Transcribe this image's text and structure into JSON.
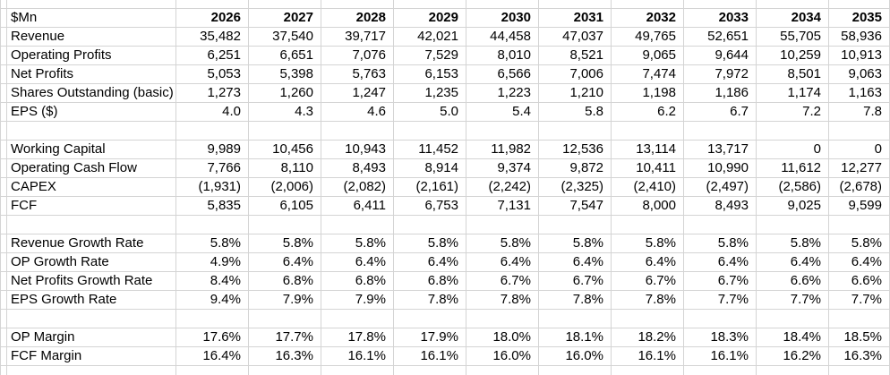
{
  "sheet": {
    "unit_label": "$Mn",
    "years": [
      "2026",
      "2027",
      "2028",
      "2029",
      "2030",
      "2031",
      "2032",
      "2033",
      "2034",
      "2035"
    ],
    "rows": [
      {
        "label": "Revenue",
        "values": [
          "35,482",
          "37,540",
          "39,717",
          "42,021",
          "44,458",
          "47,037",
          "49,765",
          "52,651",
          "55,705",
          "58,936"
        ]
      },
      {
        "label": "Operating Profits",
        "values": [
          "6,251",
          "6,651",
          "7,076",
          "7,529",
          "8,010",
          "8,521",
          "9,065",
          "9,644",
          "10,259",
          "10,913"
        ]
      },
      {
        "label": "Net Profits",
        "values": [
          "5,053",
          "5,398",
          "5,763",
          "6,153",
          "6,566",
          "7,006",
          "7,474",
          "7,972",
          "8,501",
          "9,063"
        ]
      },
      {
        "label": "Shares Outstanding (basic)",
        "values": [
          "1,273",
          "1,260",
          "1,247",
          "1,235",
          "1,223",
          "1,210",
          "1,198",
          "1,186",
          "1,174",
          "1,163"
        ]
      },
      {
        "label": "EPS ($)",
        "values": [
          "4.0",
          "4.3",
          "4.6",
          "5.0",
          "5.4",
          "5.8",
          "6.2",
          "6.7",
          "7.2",
          "7.8"
        ]
      },
      {
        "label": "",
        "values": [
          "",
          "",
          "",
          "",
          "",
          "",
          "",
          "",
          "",
          ""
        ]
      },
      {
        "label": "Working Capital",
        "values": [
          "9,989",
          "10,456",
          "10,943",
          "11,452",
          "11,982",
          "12,536",
          "13,114",
          "13,717",
          "0",
          "0"
        ]
      },
      {
        "label": "Operating Cash Flow",
        "values": [
          "7,766",
          "8,110",
          "8,493",
          "8,914",
          "9,374",
          "9,872",
          "10,411",
          "10,990",
          "11,612",
          "12,277"
        ]
      },
      {
        "label": "CAPEX",
        "values": [
          "(1,931)",
          "(2,006)",
          "(2,082)",
          "(2,161)",
          "(2,242)",
          "(2,325)",
          "(2,410)",
          "(2,497)",
          "(2,586)",
          "(2,678)"
        ]
      },
      {
        "label": "FCF",
        "values": [
          "5,835",
          "6,105",
          "6,411",
          "6,753",
          "7,131",
          "7,547",
          "8,000",
          "8,493",
          "9,025",
          "9,599"
        ]
      },
      {
        "label": "",
        "values": [
          "",
          "",
          "",
          "",
          "",
          "",
          "",
          "",
          "",
          ""
        ]
      },
      {
        "label": "Revenue Growth Rate",
        "values": [
          "5.8%",
          "5.8%",
          "5.8%",
          "5.8%",
          "5.8%",
          "5.8%",
          "5.8%",
          "5.8%",
          "5.8%",
          "5.8%"
        ]
      },
      {
        "label": "OP Growth Rate",
        "values": [
          "4.9%",
          "6.4%",
          "6.4%",
          "6.4%",
          "6.4%",
          "6.4%",
          "6.4%",
          "6.4%",
          "6.4%",
          "6.4%"
        ]
      },
      {
        "label": "Net Profits Growth Rate",
        "values": [
          "8.4%",
          "6.8%",
          "6.8%",
          "6.8%",
          "6.7%",
          "6.7%",
          "6.7%",
          "6.7%",
          "6.6%",
          "6.6%"
        ]
      },
      {
        "label": "EPS Growth Rate",
        "values": [
          "9.4%",
          "7.9%",
          "7.9%",
          "7.8%",
          "7.8%",
          "7.8%",
          "7.8%",
          "7.7%",
          "7.7%",
          "7.7%"
        ]
      },
      {
        "label": "",
        "values": [
          "",
          "",
          "",
          "",
          "",
          "",
          "",
          "",
          "",
          ""
        ]
      },
      {
        "label": "OP Margin",
        "values": [
          "17.6%",
          "17.7%",
          "17.8%",
          "17.9%",
          "18.0%",
          "18.1%",
          "18.2%",
          "18.3%",
          "18.4%",
          "18.5%"
        ]
      },
      {
        "label": "FCF Margin",
        "values": [
          "16.4%",
          "16.3%",
          "16.1%",
          "16.1%",
          "16.0%",
          "16.0%",
          "16.1%",
          "16.1%",
          "16.2%",
          "16.3%"
        ]
      }
    ],
    "colors": {
      "gridline": "#d4d4d4",
      "text": "#000000",
      "background": "#ffffff"
    }
  }
}
